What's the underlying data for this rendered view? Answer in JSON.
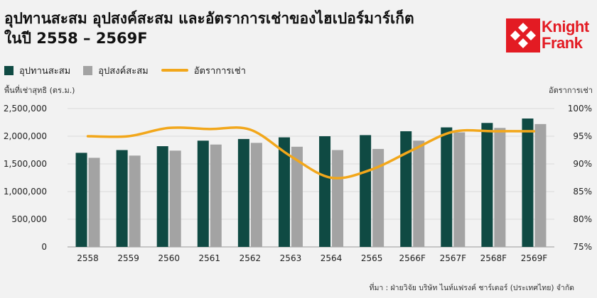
{
  "title_line1": "อุปทานสะสม อุปสงค์สะสม และอัตราการเช่าของไฮเปอร์มาร์เก็ต",
  "title_line2": "ในปี 2558 – 2569F",
  "logo": {
    "line1": "Knight",
    "line2": "Frank",
    "color": "#e31b23"
  },
  "source": "ที่มา : ฝ่ายวิจัย บริษัท ไนท์แฟรงค์ ชาร์เตอร์ (ประเทศไทย) จำกัด",
  "chart_data": {
    "type": "bar",
    "categories": [
      "2558",
      "2559",
      "2560",
      "2561",
      "2562",
      "2563",
      "2564",
      "2565",
      "2566F",
      "2567F",
      "2568F",
      "2569F"
    ],
    "series": [
      {
        "name": "อุปทานสะสม",
        "type": "bar",
        "axis": "left",
        "color": "#0f4a43",
        "values": [
          1700000,
          1750000,
          1820000,
          1920000,
          1950000,
          1980000,
          2000000,
          2020000,
          2090000,
          2160000,
          2240000,
          2320000
        ]
      },
      {
        "name": "อุปสงค์สะสม",
        "type": "bar",
        "axis": "left",
        "color": "#a3a3a3",
        "values": [
          1610000,
          1650000,
          1740000,
          1850000,
          1880000,
          1810000,
          1750000,
          1770000,
          1920000,
          2070000,
          2150000,
          2220000
        ]
      },
      {
        "name": "อัตราการเช่า",
        "type": "line",
        "axis": "right",
        "color": "#f2a71b",
        "values": [
          95.0,
          95.0,
          96.5,
          96.3,
          96.2,
          91.4,
          87.5,
          89.0,
          92.5,
          95.8,
          95.9,
          95.9
        ]
      }
    ],
    "ylabel": "พื้นที่เช่าสุทธิ (ตร.ม.)",
    "y2label": "อัตราการเช่า",
    "ylim": [
      0,
      2500000
    ],
    "y2lim": [
      75,
      100
    ],
    "yticks": [
      "0",
      "500,000",
      "1,000,000",
      "1,500,000",
      "2,000,000",
      "2,500,000"
    ],
    "y2ticks": [
      "75%",
      "80%",
      "85%",
      "90%",
      "95%",
      "100%"
    ],
    "grid": true,
    "legend_position": "top-left"
  }
}
